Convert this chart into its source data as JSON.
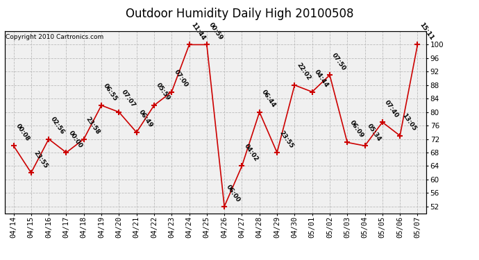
{
  "title": "Outdoor Humidity Daily High 20100508",
  "copyright": "Copyright 2010 Cartronics.com",
  "x_labels": [
    "04/14",
    "04/15",
    "04/16",
    "04/17",
    "04/18",
    "04/19",
    "04/20",
    "04/21",
    "04/22",
    "04/23",
    "04/24",
    "04/25",
    "04/26",
    "04/27",
    "04/28",
    "04/29",
    "04/30",
    "05/01",
    "05/02",
    "05/03",
    "05/04",
    "05/05",
    "05/06",
    "05/07"
  ],
  "y_values": [
    70,
    62,
    72,
    68,
    72,
    82,
    80,
    74,
    82,
    86,
    100,
    100,
    52,
    64,
    80,
    68,
    88,
    86,
    91,
    71,
    70,
    77,
    73,
    100
  ],
  "point_labels": [
    "00:08",
    "23:55",
    "02:56",
    "00:00",
    "23:58",
    "06:55",
    "07:07",
    "06:49",
    "05:59",
    "07:00",
    "11:44",
    "00:59",
    "06:00",
    "04:02",
    "06:44",
    "23:55",
    "22:02",
    "04:44",
    "07:50",
    "06:09",
    "05:34",
    "07:40",
    "13:05",
    "15:11"
  ],
  "line_color": "#cc0000",
  "marker_color": "#cc0000",
  "grid_color": "#bbbbbb",
  "bg_color": "#ffffff",
  "plot_bg_color": "#f0f0f0",
  "title_fontsize": 12,
  "copyright_fontsize": 6.5,
  "label_fontsize": 6.5,
  "tick_fontsize": 7.5,
  "ylim_min": 50,
  "ylim_max": 104,
  "yticks": [
    52,
    56,
    60,
    64,
    68,
    72,
    76,
    80,
    84,
    88,
    92,
    96,
    100
  ]
}
